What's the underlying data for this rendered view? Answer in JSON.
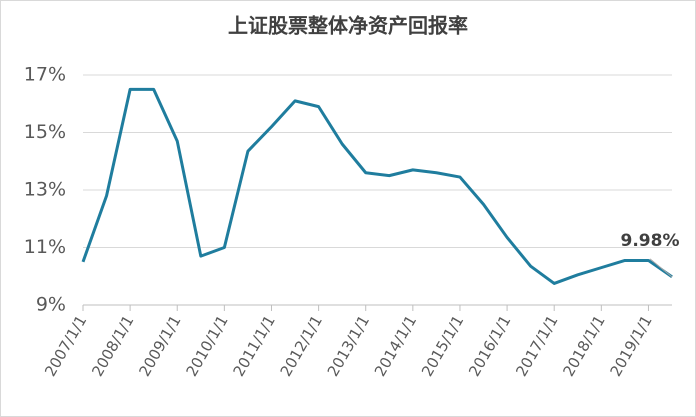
{
  "chart_data": {
    "type": "line",
    "title": "上证股票整体净资产回报率",
    "categories": [
      "2007/1/1",
      null,
      "2008/1/1",
      null,
      "2009/1/1",
      null,
      "2010/1/1",
      null,
      "2011/1/1",
      null,
      "2012/1/1",
      null,
      "2013/1/1",
      null,
      "2014/1/1",
      null,
      "2015/1/1",
      null,
      "2016/1/1",
      null,
      "2017/1/1",
      null,
      "2018/1/1",
      null,
      "2019/1/1",
      null
    ],
    "values": [
      10.5,
      12.8,
      16.5,
      16.5,
      14.7,
      10.7,
      11.0,
      14.35,
      15.2,
      16.1,
      15.9,
      14.6,
      13.6,
      13.5,
      13.7,
      13.6,
      13.45,
      12.5,
      11.35,
      10.35,
      9.75,
      10.05,
      10.3,
      10.55,
      10.55,
      9.98
    ],
    "value_labels": [
      null,
      null,
      null,
      null,
      null,
      null,
      null,
      null,
      null,
      null,
      null,
      null,
      null,
      null,
      null,
      null,
      null,
      null,
      null,
      null,
      null,
      null,
      null,
      null,
      null,
      "9.98%"
    ],
    "color": "#1f7d9e",
    "ylim": [
      9,
      17
    ],
    "yticks": [
      {
        "value": 9,
        "label": "9%"
      },
      {
        "value": 11,
        "label": "11%"
      },
      {
        "value": 13,
        "label": "13%"
      },
      {
        "value": 15,
        "label": "15%"
      },
      {
        "value": 17,
        "label": "17%"
      }
    ],
    "grid": true
  }
}
